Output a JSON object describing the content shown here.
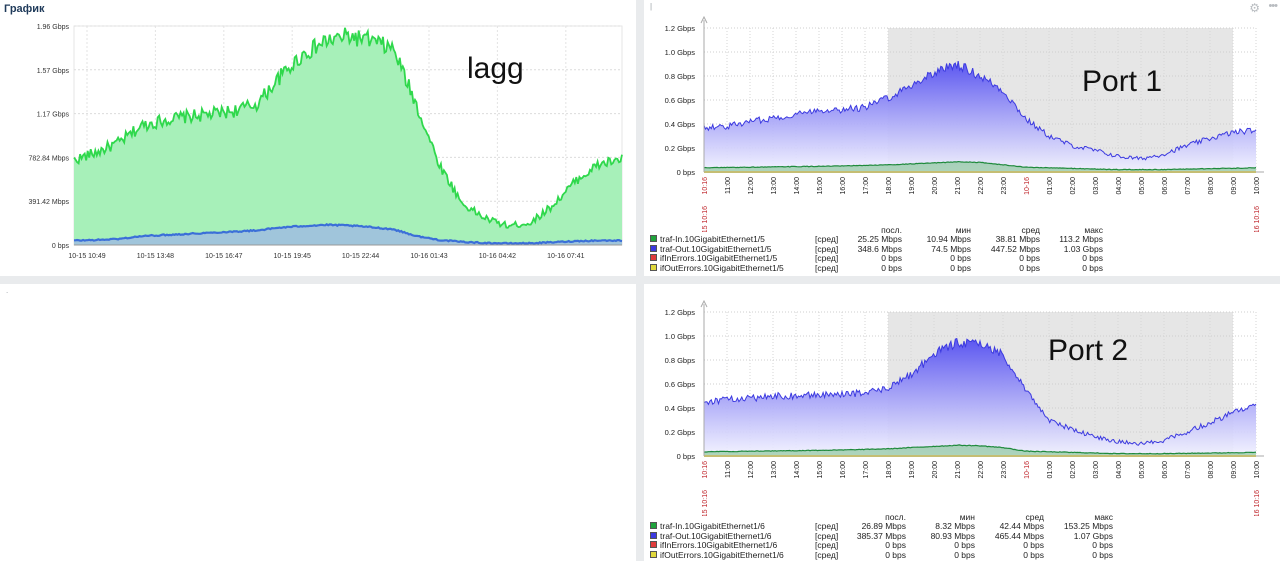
{
  "lagg_panel": {
    "title": "График",
    "label": "lagg",
    "chart_data": {
      "type": "area",
      "y_ticks": [
        "0 bps",
        "391.42 Mbps",
        "782.84 Mbps",
        "1.17 Gbps",
        "1.57 Gbps",
        "1.96 Gbps"
      ],
      "ylim_mbps": [
        0,
        1960
      ],
      "x_ticks": [
        "10-15 10:49",
        "10-15 13:48",
        "10-15 16:47",
        "10-15 19:45",
        "10-15 22:44",
        "10-16 01:43",
        "10-16 04:42",
        "10-16 07:41"
      ],
      "x_hours": [
        0,
        24
      ],
      "series": [
        {
          "color": "#2fd84c",
          "fill": "#a7f0b9",
          "values_mbps": [
            [
              0,
              760
            ],
            [
              1,
              830
            ],
            [
              2,
              920
            ],
            [
              3,
              1070
            ],
            [
              4,
              1120
            ],
            [
              5,
              1150
            ],
            [
              6,
              1170
            ],
            [
              7,
              1200
            ],
            [
              8,
              1260
            ],
            [
              9,
              1500
            ],
            [
              10,
              1700
            ],
            [
              11,
              1820
            ],
            [
              12,
              1870
            ],
            [
              13,
              1830
            ],
            [
              14,
              1750
            ],
            [
              15,
              1250
            ],
            [
              16,
              720
            ],
            [
              17,
              370
            ],
            [
              18,
              240
            ],
            [
              19,
              170
            ],
            [
              20,
              200
            ],
            [
              21,
              360
            ],
            [
              22,
              580
            ],
            [
              23,
              720
            ],
            [
              24,
              770
            ]
          ]
        },
        {
          "color": "#3b6fd8",
          "fill": "#9fbde0",
          "values_mbps": [
            [
              0,
              40
            ],
            [
              1,
              45
            ],
            [
              2,
              55
            ],
            [
              3,
              80
            ],
            [
              4,
              90
            ],
            [
              5,
              100
            ],
            [
              6,
              110
            ],
            [
              7,
              120
            ],
            [
              8,
              130
            ],
            [
              9,
              155
            ],
            [
              10,
              170
            ],
            [
              11,
              180
            ],
            [
              12,
              175
            ],
            [
              13,
              160
            ],
            [
              14,
              140
            ],
            [
              15,
              80
            ],
            [
              16,
              45
            ],
            [
              17,
              28
            ],
            [
              18,
              18
            ],
            [
              19,
              15
            ],
            [
              20,
              16
            ],
            [
              21,
              25
            ],
            [
              22,
              35
            ],
            [
              23,
              40
            ],
            [
              24,
              40
            ]
          ]
        }
      ]
    }
  },
  "port1_panel": {
    "label": "Port 1",
    "chart_data": {
      "type": "area",
      "y_ticks": [
        "0 bps",
        "0.2 Gbps",
        "0.4 Gbps",
        "0.6 Gbps",
        "0.8 Gbps",
        "1.0 Gbps",
        "1.2 Gbps"
      ],
      "ylim_gbps": [
        0,
        1.2
      ],
      "x_ticks": [
        {
          "label": "10:16",
          "red": true
        },
        {
          "label": "11:00"
        },
        {
          "label": "12:00"
        },
        {
          "label": "13:00"
        },
        {
          "label": "14:00"
        },
        {
          "label": "15:00"
        },
        {
          "label": "16:00"
        },
        {
          "label": "17:00"
        },
        {
          "label": "18:00"
        },
        {
          "label": "19:00"
        },
        {
          "label": "20:00"
        },
        {
          "label": "21:00"
        },
        {
          "label": "22:00"
        },
        {
          "label": "23:00"
        },
        {
          "label": "10-16",
          "red": true
        },
        {
          "label": "01:00"
        },
        {
          "label": "02:00"
        },
        {
          "label": "03:00"
        },
        {
          "label": "04:00"
        },
        {
          "label": "05:00"
        },
        {
          "label": "06:00"
        },
        {
          "label": "07:00"
        },
        {
          "label": "08:00"
        },
        {
          "label": "09:00"
        },
        {
          "label": "10:00"
        }
      ],
      "start_label": "10-15 10:16",
      "end_label": "10-16 10:16",
      "night_band_hours": [
        8,
        23
      ],
      "series": [
        {
          "name": "traf-Out.10GigabitEthernet1/5",
          "color": "#3c3ae0",
          "values_gbps": [
            [
              0,
              0.37
            ],
            [
              1,
              0.38
            ],
            [
              2,
              0.42
            ],
            [
              3,
              0.45
            ],
            [
              4,
              0.48
            ],
            [
              5,
              0.52
            ],
            [
              6,
              0.52
            ],
            [
              7,
              0.54
            ],
            [
              8,
              0.62
            ],
            [
              9,
              0.72
            ],
            [
              10,
              0.83
            ],
            [
              11,
              0.9
            ],
            [
              12,
              0.8
            ],
            [
              13,
              0.68
            ],
            [
              14,
              0.44
            ],
            [
              15,
              0.3
            ],
            [
              16,
              0.22
            ],
            [
              17,
              0.18
            ],
            [
              18,
              0.13
            ],
            [
              19,
              0.11
            ],
            [
              20,
              0.15
            ],
            [
              21,
              0.22
            ],
            [
              22,
              0.28
            ],
            [
              23,
              0.33
            ],
            [
              24,
              0.35
            ]
          ]
        },
        {
          "name": "traf-In.10GigabitEthernet1/5",
          "color": "#1f8a3c",
          "values_gbps": [
            [
              0,
              0.035
            ],
            [
              2,
              0.04
            ],
            [
              4,
              0.045
            ],
            [
              6,
              0.05
            ],
            [
              8,
              0.06
            ],
            [
              10,
              0.075
            ],
            [
              11,
              0.085
            ],
            [
              12,
              0.08
            ],
            [
              13,
              0.06
            ],
            [
              14,
              0.04
            ],
            [
              16,
              0.03
            ],
            [
              18,
              0.02
            ],
            [
              20,
              0.02
            ],
            [
              22,
              0.028
            ],
            [
              24,
              0.035
            ]
          ]
        }
      ]
    },
    "legend": {
      "headers": [
        "посл.",
        "мин",
        "сред",
        "макс"
      ],
      "rows": [
        {
          "name": "traf-In.10GigabitEthernet1/5",
          "agg": "[сред]",
          "last": "25.25 Mbps",
          "min": "10.94 Mbps",
          "avg": "38.81 Mbps",
          "max": "113.2 Mbps",
          "color": "#1fa33c"
        },
        {
          "name": "traf-Out.10GigabitEthernet1/5",
          "agg": "[сред]",
          "last": "348.6 Mbps",
          "min": "74.5 Mbps",
          "avg": "447.52 Mbps",
          "max": "1.03 Gbps",
          "color": "#3c3ae0"
        },
        {
          "name": "ifInErrors.10GigabitEthernet1/5",
          "agg": "[сред]",
          "last": "0 bps",
          "min": "0 bps",
          "avg": "0 bps",
          "max": "0 bps",
          "color": "#e03c3c"
        },
        {
          "name": "ifOutErrors.10GigabitEthernet1/5",
          "agg": "[сред]",
          "last": "0 bps",
          "min": "0 bps",
          "avg": "0 bps",
          "max": "0 bps",
          "color": "#e0d83c"
        }
      ]
    }
  },
  "port2_panel": {
    "label": "Port 2",
    "chart_data": {
      "type": "area",
      "y_ticks": [
        "0 bps",
        "0.2 Gbps",
        "0.4 Gbps",
        "0.6 Gbps",
        "0.8 Gbps",
        "1.0 Gbps",
        "1.2 Gbps"
      ],
      "ylim_gbps": [
        0,
        1.2
      ],
      "x_ticks": [
        {
          "label": "10:16",
          "red": true
        },
        {
          "label": "11:00"
        },
        {
          "label": "12:00"
        },
        {
          "label": "13:00"
        },
        {
          "label": "14:00"
        },
        {
          "label": "15:00"
        },
        {
          "label": "16:00"
        },
        {
          "label": "17:00"
        },
        {
          "label": "18:00"
        },
        {
          "label": "19:00"
        },
        {
          "label": "20:00"
        },
        {
          "label": "21:00"
        },
        {
          "label": "22:00"
        },
        {
          "label": "23:00"
        },
        {
          "label": "10-16",
          "red": true
        },
        {
          "label": "01:00"
        },
        {
          "label": "02:00"
        },
        {
          "label": "03:00"
        },
        {
          "label": "04:00"
        },
        {
          "label": "05:00"
        },
        {
          "label": "06:00"
        },
        {
          "label": "07:00"
        },
        {
          "label": "08:00"
        },
        {
          "label": "09:00"
        },
        {
          "label": "10:00"
        }
      ],
      "start_label": "10-15 10:16",
      "end_label": "10-16 10:16",
      "night_band_hours": [
        8,
        23
      ],
      "series": [
        {
          "name": "traf-Out.10GigabitEthernet1/6",
          "color": "#3c3ae0",
          "values_gbps": [
            [
              0,
              0.45
            ],
            [
              1,
              0.47
            ],
            [
              2,
              0.48
            ],
            [
              3,
              0.5
            ],
            [
              4,
              0.5
            ],
            [
              5,
              0.51
            ],
            [
              6,
              0.51
            ],
            [
              7,
              0.53
            ],
            [
              8,
              0.56
            ],
            [
              9,
              0.68
            ],
            [
              10,
              0.85
            ],
            [
              11,
              0.95
            ],
            [
              12,
              0.93
            ],
            [
              13,
              0.85
            ],
            [
              14,
              0.55
            ],
            [
              15,
              0.3
            ],
            [
              16,
              0.22
            ],
            [
              17,
              0.16
            ],
            [
              18,
              0.12
            ],
            [
              19,
              0.1
            ],
            [
              20,
              0.13
            ],
            [
              21,
              0.2
            ],
            [
              22,
              0.28
            ],
            [
              23,
              0.36
            ],
            [
              24,
              0.42
            ]
          ]
        },
        {
          "name": "traf-In.10GigabitEthernet1/6",
          "color": "#1f8a3c",
          "values_gbps": [
            [
              0,
              0.035
            ],
            [
              2,
              0.04
            ],
            [
              4,
              0.045
            ],
            [
              6,
              0.05
            ],
            [
              8,
              0.06
            ],
            [
              10,
              0.08
            ],
            [
              11,
              0.09
            ],
            [
              12,
              0.085
            ],
            [
              13,
              0.07
            ],
            [
              14,
              0.04
            ],
            [
              16,
              0.03
            ],
            [
              18,
              0.02
            ],
            [
              20,
              0.02
            ],
            [
              22,
              0.025
            ],
            [
              24,
              0.03
            ]
          ]
        }
      ]
    },
    "legend": {
      "headers": [
        "посл.",
        "мин",
        "сред",
        "макс"
      ],
      "rows": [
        {
          "name": "traf-In.10GigabitEthernet1/6",
          "agg": "[сред]",
          "last": "26.89 Mbps",
          "min": "8.32 Mbps",
          "avg": "42.44 Mbps",
          "max": "153.25 Mbps",
          "color": "#1fa33c"
        },
        {
          "name": "traf-Out.10GigabitEthernet1/6",
          "agg": "[сред]",
          "last": "385.37 Mbps",
          "min": "80.93 Mbps",
          "avg": "465.44 Mbps",
          "max": "1.07 Gbps",
          "color": "#3c3ae0"
        },
        {
          "name": "ifInErrors.10GigabitEthernet1/6",
          "agg": "[сред]",
          "last": "0 bps",
          "min": "0 bps",
          "avg": "0 bps",
          "max": "0 bps",
          "color": "#e03c3c"
        },
        {
          "name": "ifOutErrors.10GigabitEthernet1/6",
          "agg": "[сред]",
          "last": "0 bps",
          "min": "0 bps",
          "avg": "0 bps",
          "max": "0 bps",
          "color": "#e0d83c"
        }
      ]
    }
  },
  "port1_marker": "|",
  "empty_marker": "."
}
